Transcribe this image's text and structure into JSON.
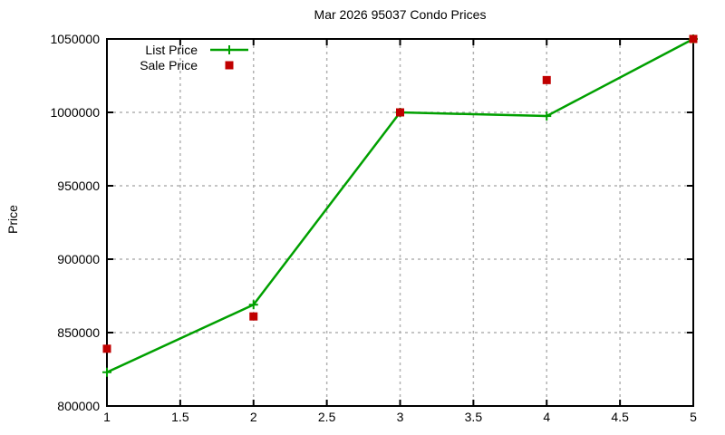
{
  "chart_data": {
    "type": "line",
    "title": "Mar 2026 95037 Condo Prices",
    "xlabel": "",
    "ylabel": "Price",
    "xlim": [
      1,
      5
    ],
    "ylim": [
      800000,
      1050000
    ],
    "grid": true,
    "legend_position": "top-left-inside",
    "x_ticks": {
      "values": [
        1,
        1.5,
        2,
        2.5,
        3,
        3.5,
        4,
        4.5,
        5
      ],
      "labels": [
        "1",
        "1.5",
        "2",
        "2.5",
        "3",
        "3.5",
        "4",
        "4.5",
        "5"
      ]
    },
    "y_ticks": {
      "values": [
        800000,
        850000,
        900000,
        950000,
        1000000,
        1050000
      ],
      "labels": [
        "800000",
        "850000",
        "900000",
        "950000",
        "1000000",
        "1050000"
      ]
    },
    "x": [
      1,
      2,
      3,
      4,
      5
    ],
    "series": [
      {
        "name": "List Price",
        "marker": "plus",
        "line": true,
        "color": "#00a000",
        "values": [
          823000,
          869000,
          1000000,
          997500,
          1050000
        ]
      },
      {
        "name": "Sale Price",
        "marker": "square",
        "line": false,
        "color": "#c00000",
        "values": [
          839000,
          861000,
          1000000,
          1022000,
          1050000
        ]
      }
    ],
    "colors": {
      "grid": "#b2b2b2",
      "axis": "#000000",
      "background": "#ffffff"
    }
  }
}
